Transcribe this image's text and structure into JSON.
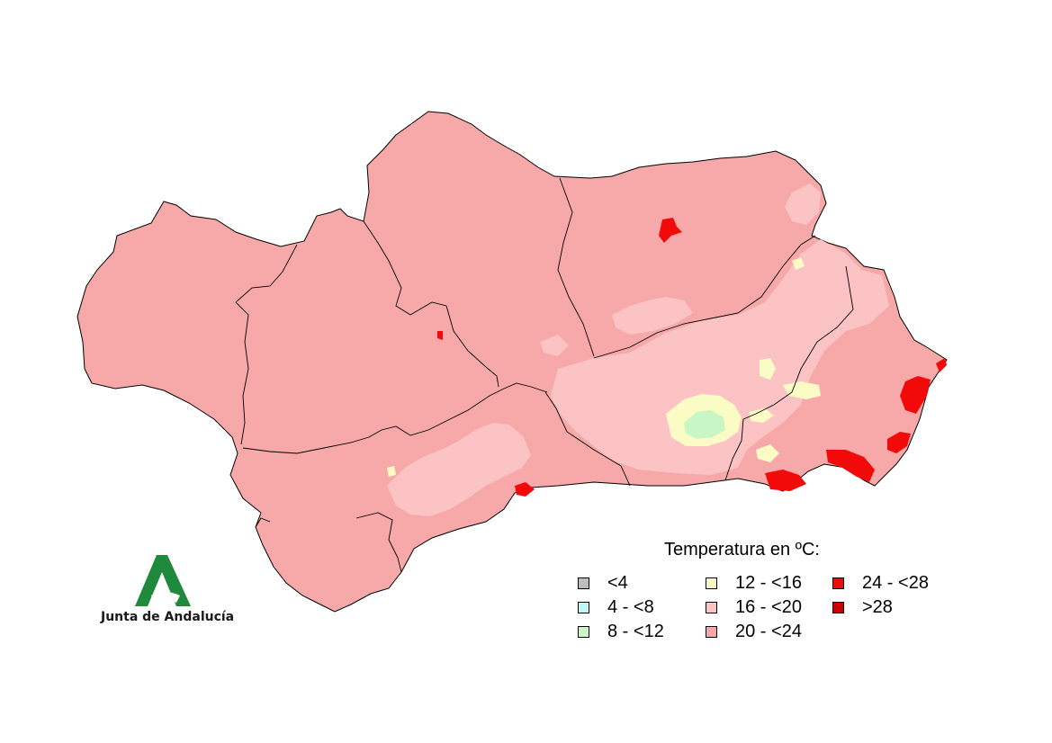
{
  "legend": {
    "title": "Temperatura en ºC:",
    "items": [
      {
        "label": "<4",
        "color": "#bdbdbd"
      },
      {
        "label": "4 - <8",
        "color": "#bff7f7"
      },
      {
        "label": "8 - <12",
        "color": "#c8f7c5"
      },
      {
        "label": "12 - <16",
        "color": "#fbfbc6"
      },
      {
        "label": "16 - <20",
        "color": "#fbc3c3"
      },
      {
        "label": "20 - <24",
        "color": "#f7a8a8"
      },
      {
        "label": "24 - <28",
        "color": "#f20a0a"
      },
      {
        "label": ">28",
        "color": "#c90000"
      }
    ]
  },
  "logo": {
    "text": "Junta de Andalucía",
    "color": "#1f8a3c"
  },
  "map_colors": {
    "base": "#f7a8a8",
    "mid": "#fbc3c3",
    "cool": "#fbfbc6",
    "cold": "#c8f7c5",
    "hot": "#f20a0a"
  }
}
